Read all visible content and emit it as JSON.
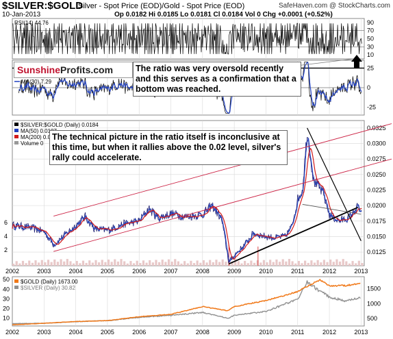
{
  "header": {
    "symbol": "$SILVER:$GOLD",
    "description": "Silver - Spot Price (EOD)/Gold - Spot Price (EOD)",
    "source": "SafeHaven.com",
    "copyright": "@ StockCharts.com",
    "date": "10-Jan-2013",
    "quote": "Op 0.0182  Hi 0.0185  Lo 0.0181  Cl 0.0184  Vol 0  Chg +0.0001 (+0.52%)",
    "quote_arrow": "▲"
  },
  "brand": {
    "part1": "Sunshine",
    "part2": "Profits.com"
  },
  "annotations": {
    "rsi_note": "The ratio was very oversold recently and this serves as a confirmation that a bottom was reached.",
    "ratio_note": "The technical picture in the ratio itself is inconclusive at this time, but when it rallies above the 0.02 level, silver's rally could accelerate."
  },
  "colors": {
    "price_line": "#1a1a6e",
    "ma50": "#1f3fbf",
    "ma200": "#d11a1a",
    "channel": "#cc2244",
    "trendline": "#000000",
    "gold": "#f07818",
    "silver": "#909090",
    "volume": "#e8c8c8",
    "grid": "#d8d8d8"
  },
  "chart_data": [
    {
      "panel": "rsi",
      "type": "line",
      "series": [
        {
          "name": "RSI(14) 44.76"
        }
      ],
      "yticks": [
        "90",
        "70",
        "50",
        "30",
        "10"
      ],
      "ylim": [
        0,
        100
      ],
      "reference_lines": [
        70,
        30
      ]
    },
    {
      "panel": "macd",
      "type": "line",
      "series": [
        {
          "name": "",
          "values": []
        },
        {
          "name": "MA(30) 7.29",
          "values": []
        }
      ],
      "yticks": [
        "25",
        "0",
        "-25"
      ],
      "ylim": [
        -35,
        35
      ],
      "reference_lines": [
        25,
        0
      ]
    },
    {
      "panel": "ratio",
      "type": "line",
      "series": [
        {
          "name": "$SILVER:$GOLD (Daily) 0.0184"
        },
        {
          "name": "MA(50) 0.0187"
        },
        {
          "name": "MA(200) 0.0189"
        },
        {
          "name": "Volume 0"
        }
      ],
      "yticks": [
        "0.0325",
        "0.0300",
        "0.0275",
        "0.0250",
        "0.0225",
        "0.0200",
        "0.0175",
        "0.0150",
        "0.0125"
      ],
      "y_left_ticks": [
        "6",
        "4",
        "2"
      ],
      "x": [
        2002,
        2002.5,
        2003,
        2003.3,
        2003.6,
        2004,
        2004.3,
        2004.6,
        2005,
        2005.5,
        2006,
        2006.3,
        2006.6,
        2007,
        2007.5,
        2008,
        2008.3,
        2008.6,
        2008.83,
        2009,
        2009.3,
        2009.6,
        2010,
        2010.3,
        2010.6,
        2010.8,
        2011,
        2011.15,
        2011.3,
        2011.5,
        2011.8,
        2012,
        2012.3,
        2012.6,
        2012.9,
        2013.03
      ],
      "values": [
        0.0168,
        0.0165,
        0.0158,
        0.0137,
        0.015,
        0.0168,
        0.0182,
        0.0162,
        0.016,
        0.017,
        0.0175,
        0.0195,
        0.018,
        0.0187,
        0.0182,
        0.0186,
        0.02,
        0.0178,
        0.0108,
        0.012,
        0.0135,
        0.0155,
        0.015,
        0.0148,
        0.015,
        0.0165,
        0.021,
        0.0225,
        0.032,
        0.024,
        0.022,
        0.0185,
        0.0175,
        0.018,
        0.0198,
        0.0184
      ],
      "ylim": [
        0.0103,
        0.0337
      ],
      "xlim": [
        2002,
        2013.1
      ]
    },
    {
      "panel": "gold_silver",
      "type": "line",
      "series": [
        {
          "name": "$GOLD (Daily) 1673.00",
          "x": [
            2002,
            2003,
            2004,
            2005,
            2006,
            2007,
            2008,
            2008.8,
            2009,
            2010,
            2011,
            2011.7,
            2012,
            2012.5,
            2013
          ],
          "values": [
            290,
            340,
            400,
            430,
            560,
            640,
            900,
            760,
            900,
            1100,
            1400,
            1800,
            1600,
            1600,
            1673
          ]
        },
        {
          "name": "$SILVER (Daily) 30.82",
          "x": [
            2002,
            2003,
            2004,
            2005,
            2006,
            2007,
            2008,
            2008.8,
            2009,
            2010,
            2011,
            2011.3,
            2011.7,
            2012,
            2012.5,
            2013
          ],
          "values": [
            4.5,
            4.8,
            6.5,
            7.5,
            11,
            13,
            16,
            10,
            13,
            17,
            30,
            48,
            38,
            32,
            28,
            30.82
          ]
        }
      ],
      "y_right_ticks": [
        "1500",
        "1000",
        "500"
      ],
      "y_left_ticks": [
        "50",
        "40",
        "30",
        "20",
        "10"
      ],
      "xlabels": [
        "2002",
        "2003",
        "2004",
        "2005",
        "2006",
        "2007",
        "2008",
        "2009",
        "2010",
        "2011",
        "2012",
        "2013"
      ]
    }
  ]
}
